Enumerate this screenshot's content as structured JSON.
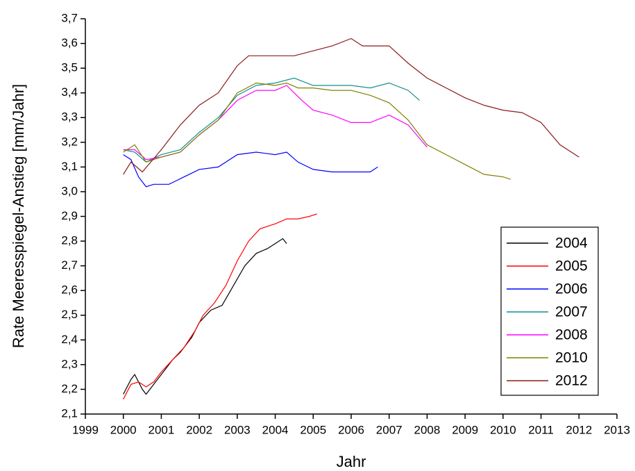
{
  "chart_data": {
    "type": "line",
    "x_label": "Jahr",
    "y_label": "Rate Meeresspiegel-Anstieg [mm/Jahr]",
    "xlim": [
      1999,
      2013
    ],
    "xticks": [
      1999,
      2000,
      2001,
      2002,
      2003,
      2004,
      2005,
      2006,
      2007,
      2008,
      2009,
      2010,
      2011,
      2012,
      2013
    ],
    "ylim": [
      2.1,
      3.7
    ],
    "yticks": [
      {
        "value": 2.1,
        "label": "2,1"
      },
      {
        "value": 2.2,
        "label": "2,2"
      },
      {
        "value": 2.3,
        "label": "2,3"
      },
      {
        "value": 2.4,
        "label": "2,4"
      },
      {
        "value": 2.5,
        "label": "2,5"
      },
      {
        "value": 2.6,
        "label": "2,6"
      },
      {
        "value": 2.7,
        "label": "2,7"
      },
      {
        "value": 2.8,
        "label": "2,8"
      },
      {
        "value": 2.9,
        "label": "2,9"
      },
      {
        "value": 3.0,
        "label": "3,0"
      },
      {
        "value": 3.1,
        "label": "3,1"
      },
      {
        "value": 3.2,
        "label": "3,2"
      },
      {
        "value": 3.3,
        "label": "3,3"
      },
      {
        "value": 3.4,
        "label": "3,4"
      },
      {
        "value": 3.5,
        "label": "3,5"
      },
      {
        "value": 3.6,
        "label": "3,6"
      },
      {
        "value": 3.7,
        "label": "3,7"
      }
    ],
    "grid": false,
    "legend": "lower right",
    "series": [
      {
        "name": "2004",
        "color": "#000000",
        "x": [
          2000,
          2000.2,
          2000.3,
          2000.5,
          2000.6,
          2000.8,
          2001,
          2001.3,
          2001.5,
          2001.8,
          2002,
          2002.3,
          2002.6,
          2002.9,
          2003.2,
          2003.5,
          2003.8,
          2004,
          2004.2,
          2004.3
        ],
        "values": [
          2.18,
          2.24,
          2.26,
          2.2,
          2.18,
          2.22,
          2.26,
          2.32,
          2.35,
          2.41,
          2.47,
          2.52,
          2.54,
          2.62,
          2.7,
          2.75,
          2.77,
          2.79,
          2.81,
          2.79
        ]
      },
      {
        "name": "2005",
        "color": "#ff0000",
        "x": [
          2000,
          2000.2,
          2000.4,
          2000.6,
          2000.8,
          2001,
          2001.3,
          2001.6,
          2001.9,
          2002.1,
          2002.4,
          2002.7,
          2003,
          2003.3,
          2003.6,
          2004,
          2004.3,
          2004.6,
          2004.9,
          2005.1
        ],
        "values": [
          2.16,
          2.22,
          2.23,
          2.21,
          2.23,
          2.27,
          2.32,
          2.37,
          2.44,
          2.5,
          2.55,
          2.62,
          2.72,
          2.8,
          2.85,
          2.87,
          2.89,
          2.89,
          2.9,
          2.91
        ]
      },
      {
        "name": "2006",
        "color": "#0000ff",
        "x": [
          2000,
          2000.2,
          2000.4,
          2000.6,
          2000.8,
          2001.2,
          2001.6,
          2002,
          2002.5,
          2003,
          2003.5,
          2004,
          2004.3,
          2004.6,
          2005,
          2005.5,
          2006,
          2006.5,
          2006.7
        ],
        "values": [
          3.15,
          3.13,
          3.06,
          3.02,
          3.03,
          3.03,
          3.06,
          3.09,
          3.1,
          3.15,
          3.16,
          3.15,
          3.16,
          3.12,
          3.09,
          3.08,
          3.08,
          3.08,
          3.1
        ]
      },
      {
        "name": "2007",
        "color": "#138f8f",
        "x": [
          2000,
          2000.3,
          2000.6,
          2001,
          2001.5,
          2002,
          2002.5,
          2003,
          2003.5,
          2004,
          2004.5,
          2005,
          2005.5,
          2006,
          2006.5,
          2007,
          2007.5,
          2007.8
        ],
        "values": [
          3.17,
          3.16,
          3.12,
          3.15,
          3.17,
          3.24,
          3.3,
          3.39,
          3.43,
          3.44,
          3.46,
          3.43,
          3.43,
          3.43,
          3.42,
          3.44,
          3.41,
          3.37
        ]
      },
      {
        "name": "2008",
        "color": "#ff00ff",
        "x": [
          2000,
          2000.3,
          2000.6,
          2001,
          2001.5,
          2002,
          2002.5,
          2003,
          2003.5,
          2004,
          2004.3,
          2004.7,
          2005,
          2005.5,
          2006,
          2006.5,
          2007,
          2007.5,
          2008
        ],
        "values": [
          3.17,
          3.17,
          3.13,
          3.14,
          3.16,
          3.23,
          3.29,
          3.37,
          3.41,
          3.41,
          3.43,
          3.37,
          3.33,
          3.31,
          3.28,
          3.28,
          3.31,
          3.27,
          3.18
        ]
      },
      {
        "name": "2010",
        "color": "#808000",
        "x": [
          2000,
          2000.3,
          2000.6,
          2001,
          2001.5,
          2002,
          2002.5,
          2003,
          2003.5,
          2004,
          2004.3,
          2004.6,
          2005,
          2005.5,
          2006,
          2006.5,
          2007,
          2007.5,
          2008,
          2008.5,
          2009,
          2009.5,
          2010,
          2010.2
        ],
        "values": [
          3.16,
          3.19,
          3.12,
          3.14,
          3.16,
          3.23,
          3.29,
          3.4,
          3.44,
          3.43,
          3.44,
          3.42,
          3.42,
          3.41,
          3.41,
          3.39,
          3.36,
          3.29,
          3.19,
          3.15,
          3.11,
          3.07,
          3.06,
          3.05
        ]
      },
      {
        "name": "2012",
        "color": "#8b1a1a",
        "x": [
          2000,
          2000.2,
          2000.5,
          2001,
          2001.5,
          2002,
          2002.5,
          2003,
          2003.3,
          2004,
          2004.5,
          2005,
          2005.5,
          2006,
          2006.3,
          2007,
          2007.5,
          2008,
          2008.5,
          2009,
          2009.5,
          2010,
          2010.5,
          2011,
          2011.5,
          2012
        ],
        "values": [
          3.07,
          3.12,
          3.08,
          3.17,
          3.27,
          3.35,
          3.4,
          3.51,
          3.55,
          3.55,
          3.55,
          3.57,
          3.59,
          3.62,
          3.59,
          3.59,
          3.52,
          3.46,
          3.42,
          3.38,
          3.35,
          3.33,
          3.32,
          3.28,
          3.19,
          3.14
        ]
      }
    ]
  }
}
